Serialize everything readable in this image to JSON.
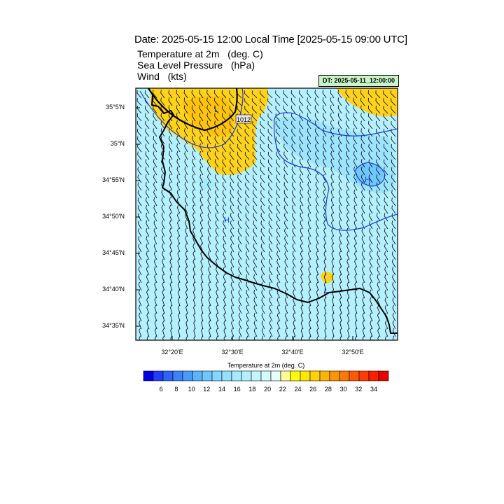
{
  "title": "Date: 2025-05-15  12:00 Local Time [2025-05-15  09:00 UTC]",
  "fields": [
    {
      "name": "Temperature at 2m",
      "unit": "(deg. C)"
    },
    {
      "name": "Sea Level Pressure",
      "unit": "(hPa)"
    },
    {
      "name": "Wind",
      "unit": "(kts)"
    }
  ],
  "init_time": "DT: 2025-05-11_12:00:00",
  "map": {
    "lat_labels": [
      "35°5'N",
      "35°N",
      "34°55'N",
      "34°50'N",
      "34°45'N",
      "34°40'N",
      "34°35'N"
    ],
    "lon_labels": [
      "32°20'E",
      "32°30'E",
      "32°40'E",
      "32°50'E"
    ],
    "pressure_labels": [
      {
        "text": "1012",
        "kind": "contour"
      },
      {
        "text": "L",
        "kind": "low"
      },
      {
        "text": "H",
        "kind": "high"
      },
      {
        "text": "H",
        "kind": "high"
      },
      {
        "text": "L",
        "kind": "low"
      }
    ]
  },
  "colorbar": {
    "title": "Temperature at 2m  (deg. C)",
    "tick_labels": [
      "6",
      "8",
      "10",
      "12",
      "14",
      "16",
      "18",
      "20",
      "22",
      "24",
      "26",
      "28",
      "30",
      "32",
      "34"
    ],
    "colors": [
      "#0000e6",
      "#1f3cff",
      "#2d64ff",
      "#3c82ff",
      "#4b9bff",
      "#5ab4ff",
      "#6ec8ff",
      "#82d7ff",
      "#96e1ff",
      "#a5ebff",
      "#b4f0ff",
      "#c3f5ff",
      "#d2faff",
      "#e6ffff",
      "#ffff96",
      "#ffff00",
      "#ffe600",
      "#ffd200",
      "#ffb400",
      "#ff9600",
      "#ff7800",
      "#ff5a00",
      "#ff3c00",
      "#ff1e00",
      "#e60000"
    ]
  },
  "colors": {
    "land_temp_dominant": "#b4f0ff",
    "warm_patch": "#ffd21e",
    "contour": "#1e3cd2",
    "coast": "#000000"
  }
}
